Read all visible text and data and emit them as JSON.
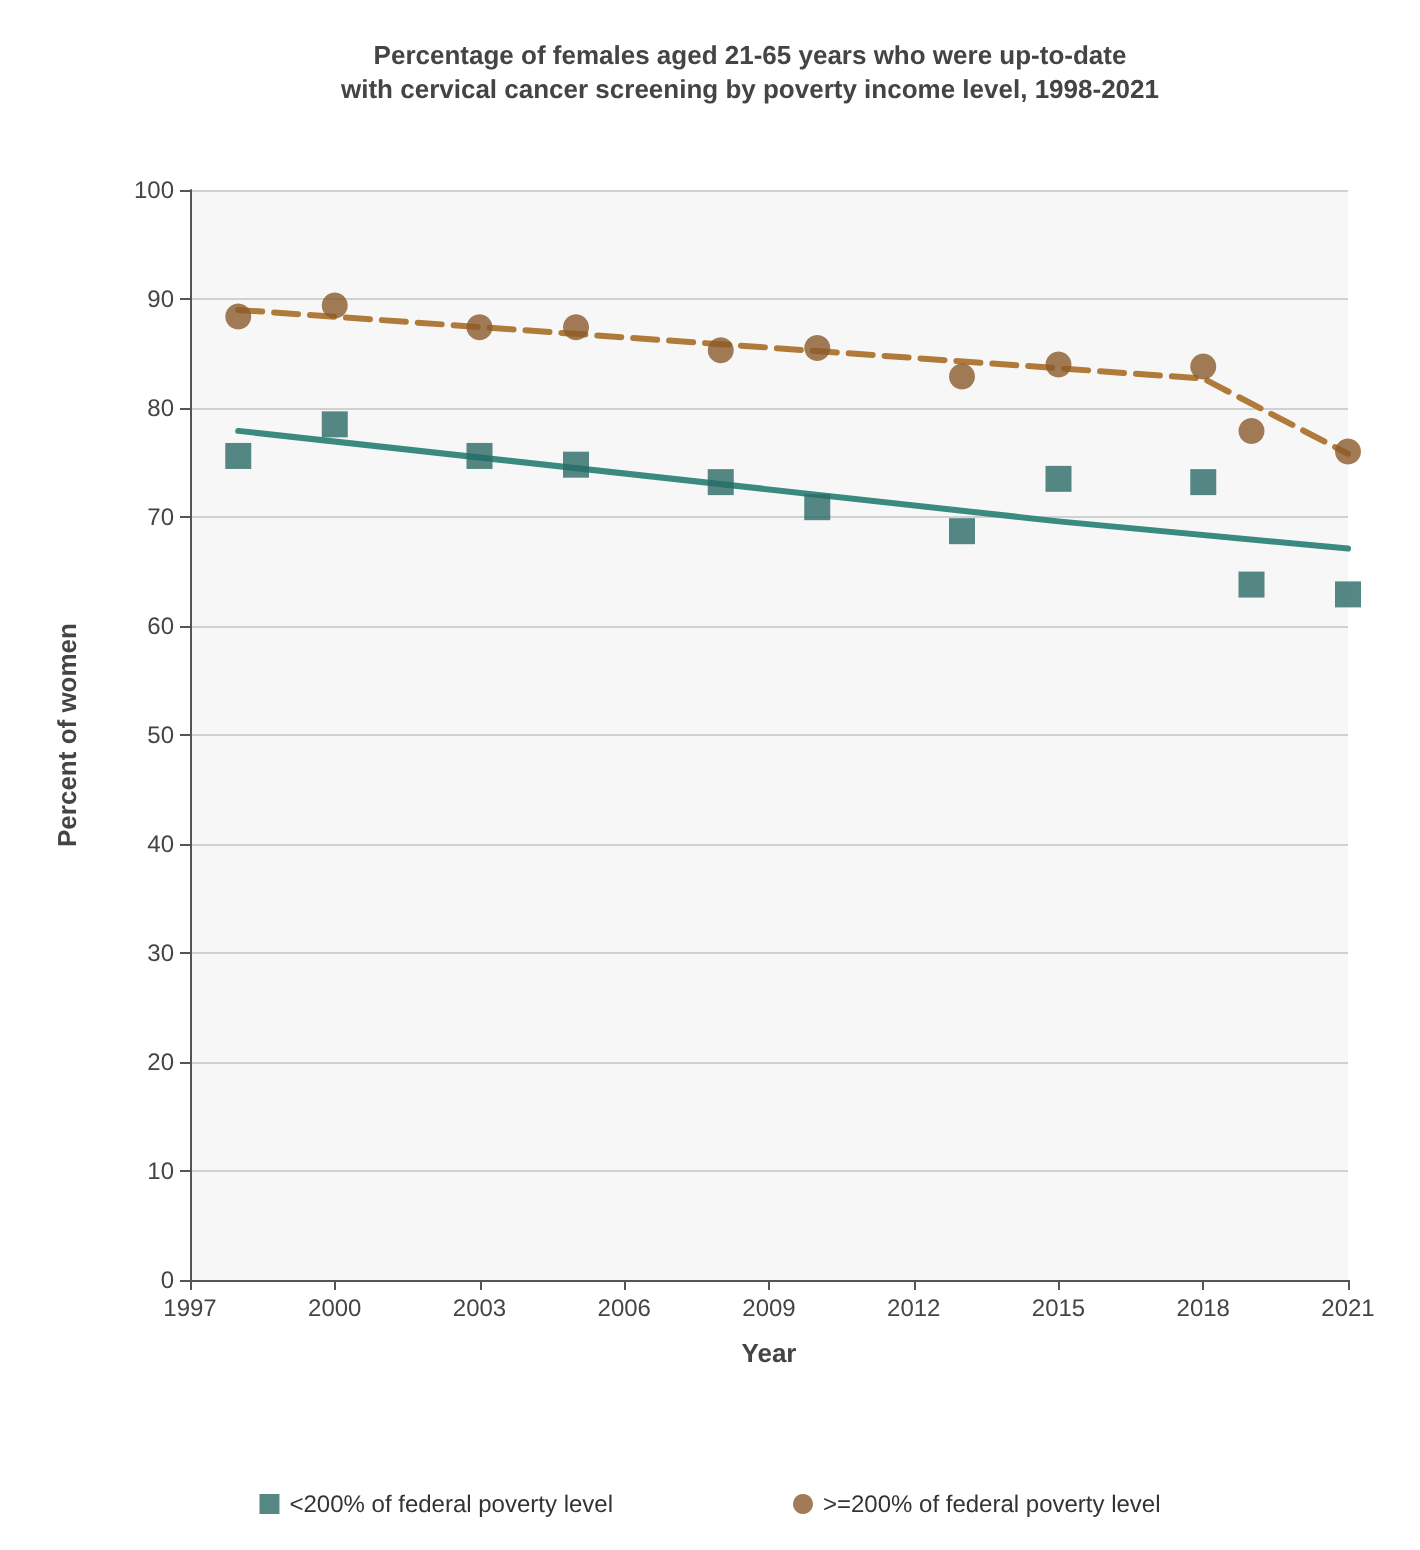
{
  "chart_data": {
    "type": "scatter",
    "title": "Percentage of females aged 21-65 years who were up-to-date\nwith cervical cancer screening by poverty income level, 1998-2021",
    "xlabel": "Year",
    "ylabel": "Percent of women",
    "x": [
      1998,
      2000,
      2003,
      2005,
      2008,
      2010,
      2013,
      2015,
      2018,
      2019,
      2021
    ],
    "series": [
      {
        "name": "<200% of federal poverty level",
        "color": "#2b6a66",
        "marker": "square",
        "values": [
          75.6,
          78.5,
          75.6,
          74.8,
          73.2,
          70.9,
          68.7,
          73.5,
          73.2,
          63.8,
          62.9
        ]
      },
      {
        "name": ">=200% of federal poverty level",
        "color": "#8a5a2a",
        "marker": "circle",
        "values": [
          88.4,
          89.4,
          87.4,
          87.4,
          85.3,
          85.5,
          82.9,
          84.0,
          83.8,
          77.9,
          76.0
        ]
      },
      {
        "type": "line",
        "color": "#3a8a80",
        "marker": "none",
        "line_style": "solid",
        "x": [
          1998,
          2015,
          2021
        ],
        "values": [
          77.9,
          69.6,
          67.1
        ]
      },
      {
        "type": "line",
        "color": "#b07a3a",
        "marker": "none",
        "line_style": "dashed",
        "x": [
          1998,
          2018,
          2021
        ],
        "values": [
          89.0,
          82.7,
          75.8
        ]
      }
    ],
    "xlim": [
      1997,
      2021
    ],
    "xticks": [
      1997,
      2000,
      2003,
      2006,
      2009,
      2012,
      2015,
      2018,
      2021
    ],
    "ylim": [
      0,
      100
    ],
    "yticks": [
      0,
      10,
      20,
      30,
      40,
      50,
      60,
      70,
      80,
      90,
      100
    ],
    "grid": "y",
    "legend": "bottom"
  }
}
